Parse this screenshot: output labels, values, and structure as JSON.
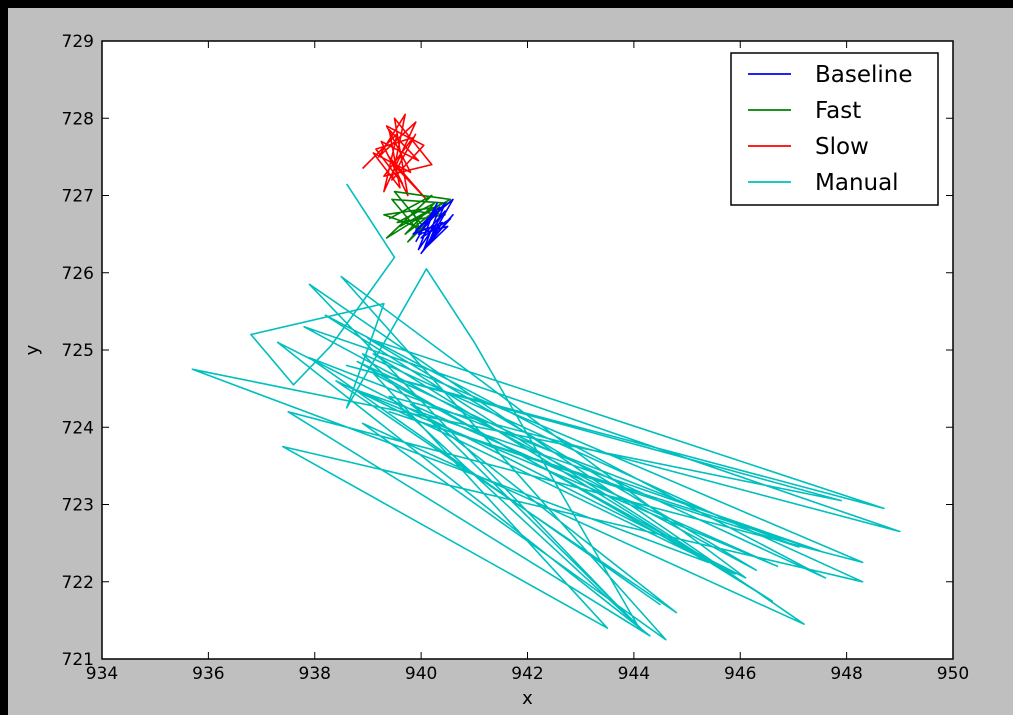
{
  "chart_data": {
    "type": "line",
    "title": "",
    "xlabel": "x",
    "ylabel": "y",
    "xlim": [
      934,
      950
    ],
    "ylim": [
      721,
      729
    ],
    "xticks": [
      934,
      936,
      938,
      940,
      942,
      944,
      946,
      948,
      950
    ],
    "yticks": [
      721,
      722,
      723,
      724,
      725,
      726,
      727,
      728,
      729
    ],
    "grid": false,
    "legend_position": "top-right",
    "series": [
      {
        "name": "Baseline",
        "color": "#0000ff",
        "x": [
          939.9,
          940.3,
          939.95,
          940.45,
          940.0,
          940.55,
          940.1,
          940.6,
          939.9,
          940.35,
          940.05,
          940.5,
          939.95,
          940.45,
          940.15,
          940.6,
          940.0,
          940.4,
          939.85,
          940.3
        ],
        "y": [
          726.4,
          726.9,
          726.3,
          726.8,
          726.45,
          726.7,
          726.35,
          726.95,
          726.55,
          726.85,
          726.3,
          726.6,
          726.5,
          726.9,
          726.4,
          726.75,
          726.25,
          726.65,
          726.5,
          726.8
        ]
      },
      {
        "name": "Fast",
        "color": "#008000",
        "x": [
          939.4,
          940.2,
          939.35,
          940.4,
          939.6,
          940.55,
          939.5,
          940.1,
          939.3,
          940.3,
          939.75,
          940.5,
          939.45,
          940.0,
          939.85,
          940.45,
          939.55,
          940.25,
          939.7,
          940.35
        ],
        "y": [
          726.7,
          727.0,
          726.45,
          726.9,
          726.6,
          726.95,
          727.05,
          726.55,
          726.75,
          726.85,
          726.4,
          726.9,
          726.95,
          726.5,
          726.8,
          726.75,
          726.65,
          726.9,
          726.5,
          726.85
        ]
      },
      {
        "name": "Slow",
        "color": "#ff0000",
        "x": [
          938.9,
          939.55,
          939.3,
          939.9,
          939.2,
          939.7,
          939.45,
          940.05,
          939.35,
          939.8,
          939.1,
          939.6,
          939.4,
          939.95,
          939.25,
          939.75,
          939.5,
          940.2,
          939.3,
          939.85,
          939.15,
          939.65,
          939.4,
          940.1,
          939.55,
          939.9
        ],
        "y": [
          727.35,
          727.8,
          727.05,
          727.95,
          727.5,
          728.05,
          727.2,
          727.65,
          727.9,
          727.3,
          727.55,
          727.1,
          727.85,
          727.45,
          727.7,
          727.0,
          728.0,
          727.4,
          727.25,
          727.75,
          727.6,
          727.15,
          727.5,
          726.95,
          727.35,
          727.8
        ]
      },
      {
        "name": "Manual",
        "color": "#00bfbf",
        "x": [
          938.6,
          939.5,
          938.3,
          937.6,
          936.8,
          939.3,
          938.6,
          940.1,
          941.0,
          944.1,
          937.9,
          947.2,
          938.9,
          944.6,
          938.5,
          946.1,
          937.3,
          944.3,
          937.5,
          948.3,
          939.1,
          946.6,
          938.2,
          947.6,
          938.8,
          945.4,
          935.7,
          947.9,
          938.6,
          948.7,
          939.0,
          946.3,
          937.8,
          949.0,
          939.4,
          944.2,
          938.9,
          948.3,
          937.4,
          943.5,
          939.1,
          945.9,
          938.4,
          944.8,
          939.8,
          946.7,
          938.7,
          947.5,
          939.4,
          947.1,
          937.9,
          944.5
        ],
        "y": [
          727.15,
          726.2,
          725.05,
          724.55,
          725.2,
          725.6,
          724.25,
          726.05,
          725.1,
          721.4,
          725.85,
          721.45,
          724.05,
          721.25,
          725.95,
          722.05,
          725.1,
          721.3,
          724.2,
          722.25,
          724.95,
          721.75,
          725.45,
          722.05,
          724.85,
          722.25,
          724.75,
          723.05,
          724.8,
          722.95,
          725.15,
          722.15,
          725.3,
          722.65,
          724.4,
          721.35,
          724.95,
          722.0,
          723.75,
          721.4,
          724.7,
          722.1,
          724.6,
          721.6,
          724.3,
          722.2,
          724.5,
          722.4,
          724.2,
          722.45,
          724.9,
          721.7
        ]
      }
    ]
  }
}
